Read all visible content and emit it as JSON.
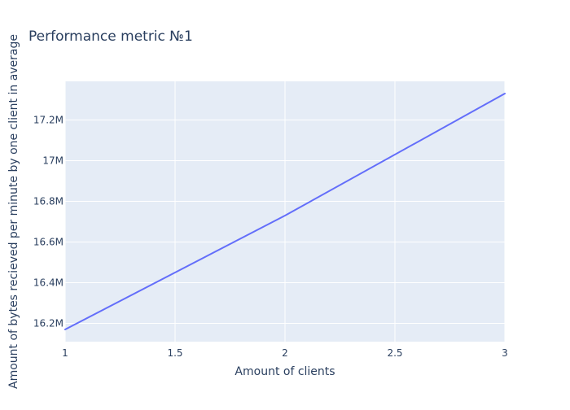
{
  "chart_data": {
    "type": "line",
    "title": "Performance metric №1",
    "xlabel": "Amount of clients",
    "ylabel": "Amount of bytes recieved per minute by one client in average",
    "x": [
      1,
      2,
      3
    ],
    "series": [
      {
        "values": [
          16170000,
          16730000,
          17330000
        ],
        "color": "#636efa"
      }
    ],
    "xlim": [
      1,
      3
    ],
    "ylim": [
      16110000,
      17390000
    ],
    "xticks": [
      1,
      1.5,
      2,
      2.5,
      3
    ],
    "xtick_labels": [
      "1",
      "1.5",
      "2",
      "2.5",
      "3"
    ],
    "yticks": [
      16200000,
      16400000,
      16600000,
      16800000,
      17000000,
      17200000
    ],
    "ytick_labels": [
      "16.2M",
      "16.4M",
      "16.6M",
      "16.8M",
      "17M",
      "17.2M"
    ],
    "grid": true,
    "legend": "none",
    "colors": {
      "plot_background": "#e5ecf6",
      "gridline": "#ffffff",
      "text": "#2a3f5f",
      "line": "#636efa"
    }
  }
}
